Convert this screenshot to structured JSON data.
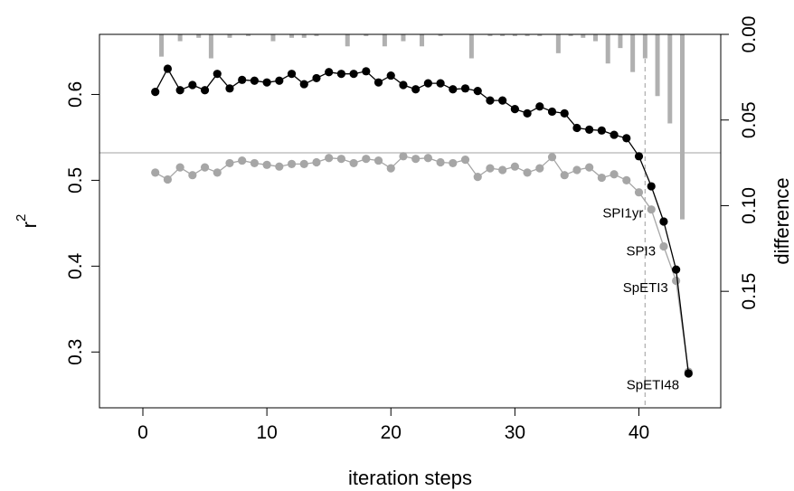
{
  "chart_data": {
    "type": "line",
    "title": "",
    "xlabel": "iteration steps",
    "ylabel": "r",
    "ylabel_sup": "2",
    "y2label": "difference",
    "xlim": [
      -3.5,
      46.6
    ],
    "ylim": [
      0.235,
      0.67
    ],
    "y2lim": [
      0.0,
      0.218
    ],
    "xticks": [
      0,
      10,
      20,
      30,
      40
    ],
    "yticks": [
      0.3,
      0.4,
      0.5,
      0.6
    ],
    "y2ticks": [
      0.0,
      0.05,
      0.1,
      0.15
    ],
    "xtick_labels": [
      "0",
      "10",
      "20",
      "30",
      "40"
    ],
    "ytick_labels": [
      "0.3",
      "0.4",
      "0.5",
      "0.6"
    ],
    "y2tick_labels": [
      "0.00",
      "0.05",
      "0.10",
      "0.15"
    ],
    "hline_r2": 0.532,
    "vline_x": 40.5,
    "colors": {
      "black": "#000000",
      "grey": "#a6a6a6",
      "bar": "#b0b0b0",
      "hline": "#b3b3b3",
      "vline": "#b3b3b3"
    },
    "series": [
      {
        "color": "black",
        "x": [
          1,
          2,
          3,
          4,
          5,
          6,
          7,
          8,
          9,
          10,
          11,
          12,
          13,
          14,
          15,
          16,
          17,
          18,
          19,
          20,
          21,
          22,
          23,
          24,
          25,
          26,
          27,
          28,
          29,
          30,
          31,
          32,
          33,
          34,
          35,
          36,
          37,
          38,
          39,
          40,
          41,
          42,
          43,
          44
        ],
        "y": [
          0.603,
          0.63,
          0.605,
          0.611,
          0.605,
          0.624,
          0.607,
          0.617,
          0.616,
          0.614,
          0.616,
          0.624,
          0.612,
          0.619,
          0.626,
          0.624,
          0.624,
          0.627,
          0.614,
          0.622,
          0.611,
          0.606,
          0.613,
          0.613,
          0.606,
          0.607,
          0.604,
          0.593,
          0.593,
          0.583,
          0.578,
          0.586,
          0.58,
          0.578,
          0.561,
          0.559,
          0.558,
          0.553,
          0.549,
          0.528,
          0.493,
          0.452,
          0.396,
          0.275
        ]
      },
      {
        "color": "grey",
        "x": [
          1,
          2,
          3,
          4,
          5,
          6,
          7,
          8,
          9,
          10,
          11,
          12,
          13,
          14,
          15,
          16,
          17,
          18,
          19,
          20,
          21,
          22,
          23,
          24,
          25,
          26,
          27,
          28,
          29,
          30,
          31,
          32,
          33,
          34,
          35,
          36,
          37,
          38,
          39,
          40,
          41,
          42,
          43,
          44
        ],
        "y": [
          0.509,
          0.501,
          0.515,
          0.506,
          0.515,
          0.509,
          0.52,
          0.523,
          0.52,
          0.518,
          0.516,
          0.519,
          0.519,
          0.521,
          0.526,
          0.525,
          0.52,
          0.525,
          0.523,
          0.514,
          0.528,
          0.525,
          0.526,
          0.521,
          0.52,
          0.524,
          0.504,
          0.514,
          0.512,
          0.516,
          0.509,
          0.514,
          0.527,
          0.506,
          0.512,
          0.515,
          0.503,
          0.507,
          0.5,
          0.486,
          0.466,
          0.423,
          0.383,
          0.277
        ]
      }
    ],
    "bars_difference": {
      "x": [
        1.5,
        3,
        4.5,
        5.5,
        7,
        8.5,
        10.5,
        12,
        13,
        14,
        16.5,
        18,
        19.5,
        21,
        22.5,
        24,
        26.5,
        28,
        29,
        30,
        31,
        32,
        33.5,
        34.5,
        35.5,
        36.5,
        37.5,
        38.5,
        39.5,
        40.5,
        41.5,
        42.5,
        43.5
      ],
      "y": [
        0.013,
        0.004,
        0.002,
        0.014,
        0.002,
        0.001,
        0.004,
        0.002,
        0.002,
        0.001,
        0.007,
        0.001,
        0.007,
        0.004,
        0.007,
        0.001,
        0.014,
        0.001,
        0.001,
        0.001,
        0.001,
        0.001,
        0.011,
        0.001,
        0.002,
        0.004,
        0.017,
        0.008,
        0.022,
        0.014,
        0.036,
        0.052,
        0.108
      ]
    },
    "annotations": [
      {
        "text": "SPI1yr",
        "x": 40.5,
        "y": 0.462
      },
      {
        "text": "SPI3",
        "x": 41.5,
        "y": 0.418
      },
      {
        "text": "SpETI3",
        "x": 42.5,
        "y": 0.375
      },
      {
        "text": "SpETI48",
        "x": 43.4,
        "y": 0.262
      }
    ]
  }
}
